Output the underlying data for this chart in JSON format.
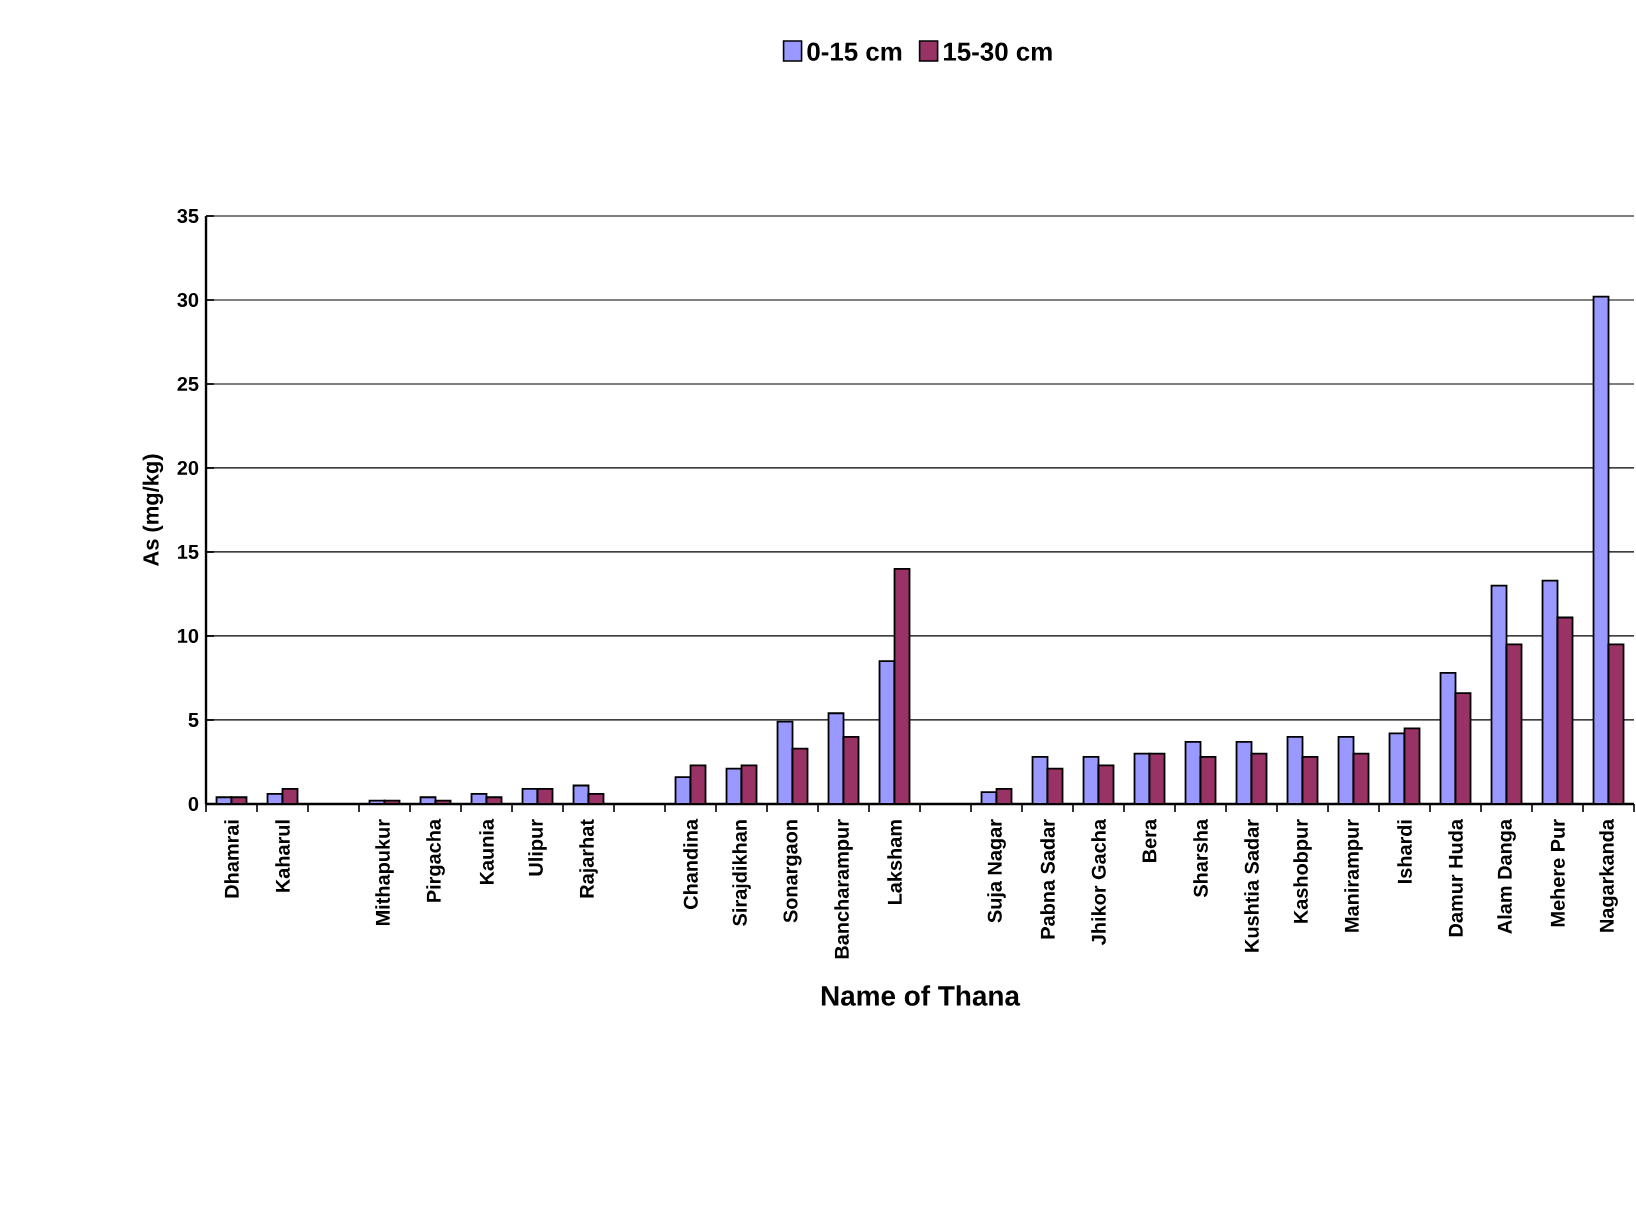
{
  "chart_data": {
    "type": "bar",
    "xlabel": "Name of Thana",
    "ylabel": "As (mg/kg)",
    "categories": [
      "Dhamrai",
      "Kaharul",
      null,
      "Mithapukur",
      "Pirgacha",
      "Kaunia",
      "Ulipur",
      "Rajarhat",
      null,
      "Chandina",
      "Sirajdikhan",
      "Sonargaon",
      "Bancharampur",
      "Laksham",
      null,
      "Suja Nagar",
      "Pabna Sadar",
      "Jhikor Gacha",
      "Bera",
      "Sharsha",
      "Kushtia Sadar",
      "Kashobpur",
      "Manirampur",
      "Ishardi",
      "Damur Huda",
      "Alam Danga",
      "Mehere Pur",
      "Nagarkanda"
    ],
    "series": [
      {
        "name": "0-15 cm",
        "color": "#9999ff",
        "values": [
          0.4,
          0.6,
          null,
          0.2,
          0.4,
          0.6,
          0.9,
          1.1,
          null,
          1.6,
          2.1,
          4.9,
          5.4,
          8.5,
          null,
          0.7,
          2.8,
          2.8,
          3.0,
          3.7,
          3.7,
          4.0,
          4.0,
          4.2,
          7.8,
          13.0,
          13.3,
          30.2
        ]
      },
      {
        "name": "15-30 cm",
        "color": "#993366",
        "values": [
          0.4,
          0.9,
          null,
          0.2,
          0.2,
          0.4,
          0.9,
          0.6,
          null,
          2.3,
          2.3,
          3.3,
          4.0,
          14.0,
          null,
          0.9,
          2.1,
          2.3,
          3.0,
          2.8,
          3.0,
          2.8,
          3.0,
          4.5,
          6.6,
          9.5,
          11.1,
          9.5
        ]
      }
    ],
    "ylim": [
      0,
      35
    ],
    "yticks": [
      0,
      5,
      10,
      15,
      20,
      25,
      30,
      35
    ],
    "grid": "y",
    "legend": "top"
  }
}
